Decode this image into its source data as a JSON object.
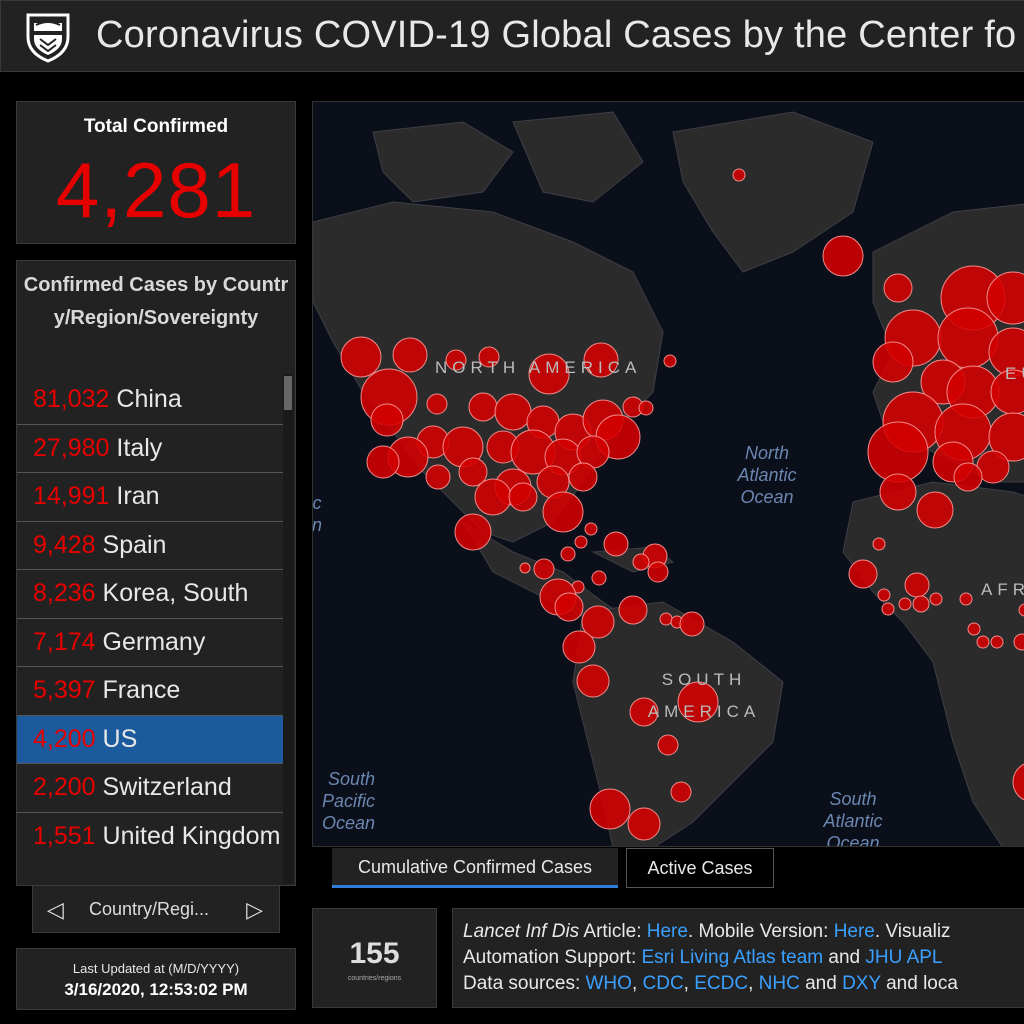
{
  "header": {
    "title": "Coronavirus COVID-19 Global Cases by the Center fo",
    "logo_icon": "university-shield-icon"
  },
  "total": {
    "label": "Total Confirmed",
    "value": "4,281"
  },
  "country_list": {
    "title": "Confirmed Cases by Country/Region/Sovereignty",
    "items": [
      {
        "count": "81,032",
        "name": "China"
      },
      {
        "count": "27,980",
        "name": "Italy"
      },
      {
        "count": "14,991",
        "name": "Iran"
      },
      {
        "count": "9,428",
        "name": "Spain"
      },
      {
        "count": "8,236",
        "name": "Korea, South"
      },
      {
        "count": "7,174",
        "name": "Germany"
      },
      {
        "count": "5,397",
        "name": "France"
      },
      {
        "count": "4,200",
        "name": "US"
      },
      {
        "count": "2,200",
        "name": "Switzerland"
      },
      {
        "count": "1,551",
        "name": "United Kingdom"
      }
    ],
    "selected_index": 7,
    "pager_label": "Country/Regi..."
  },
  "updated": {
    "label": "Last Updated at (M/D/YYYY)",
    "value": "3/16/2020, 12:53:02 PM"
  },
  "map": {
    "regions": {
      "north_america": "NORTH AMERICA",
      "south_america": "SOUTH AMERICA",
      "europe": "EU",
      "africa": "AFR"
    },
    "oceans": {
      "north_atlantic": "North Atlantic Ocean",
      "south_atlantic": "South Atlantic Ocean",
      "south_pacific": "South Pacific Ocean",
      "pacific_fragment": "c n"
    },
    "colors": {
      "ocean": "#0a0f1a",
      "land": "#2b2b2b",
      "bubble": "#d40000"
    }
  },
  "tabs": {
    "cumulative": "Cumulative Confirmed Cases",
    "active": "Active Cases"
  },
  "countries_count": {
    "value": "155",
    "label": "countries/regions"
  },
  "info": {
    "line1_prefix": "Lancet Inf Dis",
    "line1_a": " Article: ",
    "line1_link1": "Here",
    "line1_b": ". Mobile Version: ",
    "line1_link2": "Here",
    "line1_c": ". Visualiz",
    "line2_a": "Automation Support: ",
    "line2_link1": "Esri Living Atlas team",
    "line2_b": " and ",
    "line2_link2": "JHU APL",
    "line3_a": "Data sources: ",
    "line3_link1": "WHO",
    "line3_sep1": ", ",
    "line3_link2": "CDC",
    "line3_sep2": ", ",
    "line3_link3": "ECDC",
    "line3_sep3": ", ",
    "line3_link4": "NHC",
    "line3_b": " and ",
    "line3_link5": "DXY",
    "line3_c": " and loca"
  }
}
